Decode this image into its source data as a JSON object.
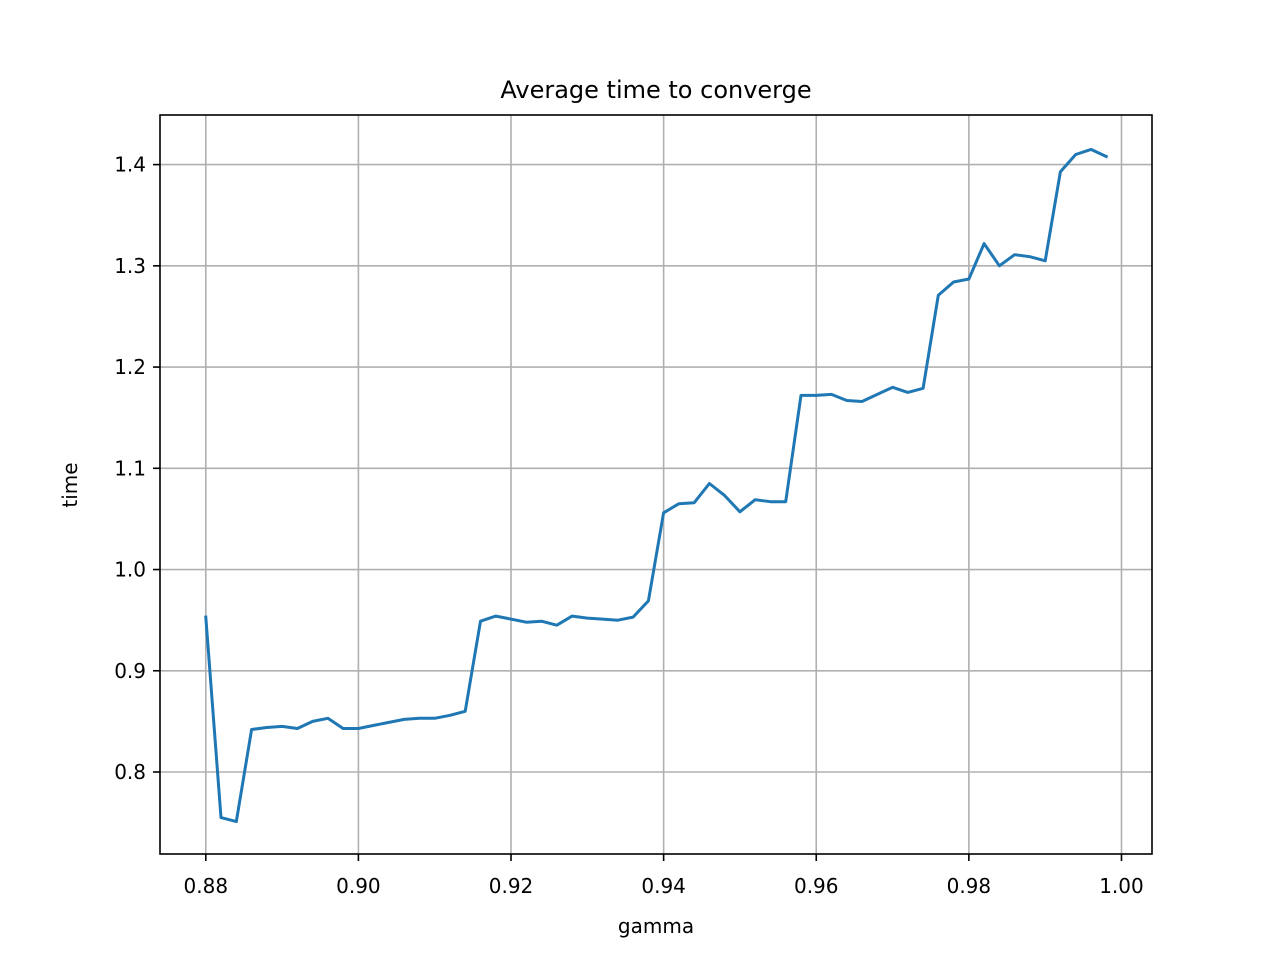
{
  "chart_data": {
    "type": "line",
    "title": "Average time to converge",
    "xlabel": "gamma",
    "ylabel": "time",
    "xlim": [
      0.874,
      1.004
    ],
    "ylim": [
      0.719,
      1.449
    ],
    "grid": true,
    "x_ticks": [
      0.88,
      0.9,
      0.92,
      0.94,
      0.96,
      0.98,
      1.0
    ],
    "x_tick_labels": [
      "0.88",
      "0.90",
      "0.92",
      "0.94",
      "0.96",
      "0.98",
      "1.00"
    ],
    "y_ticks": [
      0.8,
      0.9,
      1.0,
      1.1,
      1.2,
      1.3,
      1.4
    ],
    "y_tick_labels": [
      "0.8",
      "0.9",
      "1.0",
      "1.1",
      "1.2",
      "1.3",
      "1.4"
    ],
    "line_color": "#1f77b4",
    "series": [
      {
        "x": [
          0.88,
          0.882,
          0.884,
          0.886,
          0.888,
          0.89,
          0.892,
          0.894,
          0.896,
          0.898,
          0.9,
          0.902,
          0.904,
          0.906,
          0.908,
          0.91,
          0.912,
          0.914,
          0.916,
          0.918,
          0.92,
          0.922,
          0.924,
          0.926,
          0.928,
          0.93,
          0.932,
          0.934,
          0.936,
          0.938,
          0.94,
          0.942,
          0.944,
          0.946,
          0.948,
          0.95,
          0.952,
          0.954,
          0.956,
          0.958,
          0.96,
          0.962,
          0.964,
          0.966,
          0.968,
          0.97,
          0.972,
          0.974,
          0.976,
          0.978,
          0.98,
          0.982,
          0.984,
          0.986,
          0.988,
          0.99,
          0.992,
          0.994,
          0.996,
          0.998
        ],
        "values": [
          0.953,
          0.755,
          0.751,
          0.842,
          0.844,
          0.845,
          0.843,
          0.85,
          0.853,
          0.843,
          0.843,
          0.846,
          0.849,
          0.852,
          0.853,
          0.853,
          0.856,
          0.86,
          0.949,
          0.954,
          0.951,
          0.948,
          0.949,
          0.945,
          0.954,
          0.952,
          0.951,
          0.95,
          0.953,
          0.969,
          1.056,
          1.065,
          1.066,
          1.085,
          1.073,
          1.057,
          1.069,
          1.067,
          1.067,
          1.172,
          1.172,
          1.173,
          1.167,
          1.166,
          1.173,
          1.18,
          1.175,
          1.179,
          1.271,
          1.284,
          1.287,
          1.322,
          1.3,
          1.311,
          1.309,
          1.305,
          1.393,
          1.41,
          1.415,
          1.408
        ]
      }
    ]
  }
}
